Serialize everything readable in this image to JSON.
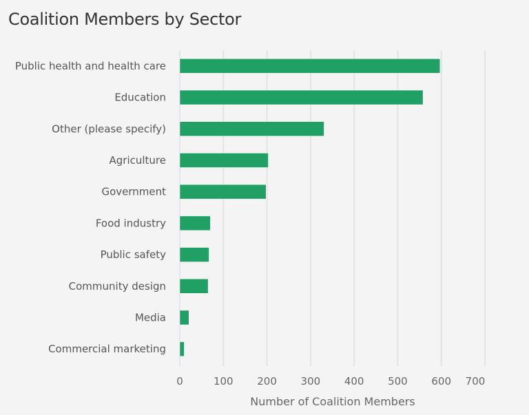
{
  "chart_data": {
    "type": "bar",
    "orientation": "horizontal",
    "title": "Coalition Members by Sector",
    "xlabel": "Number of Coalition Members",
    "ylabel": "",
    "categories": [
      "Public health and health care",
      "Education",
      "Other (please specify)",
      "Agriculture",
      "Government",
      "Food industry",
      "Public safety",
      "Community design",
      "Media",
      "Commercial marketing"
    ],
    "values": [
      597,
      558,
      331,
      203,
      198,
      70,
      67,
      65,
      21,
      10
    ],
    "xlim": [
      0,
      700
    ],
    "xticks": [
      0,
      100,
      200,
      300,
      400,
      500,
      600,
      700
    ],
    "grid": true,
    "bar_color": "#20a065"
  }
}
